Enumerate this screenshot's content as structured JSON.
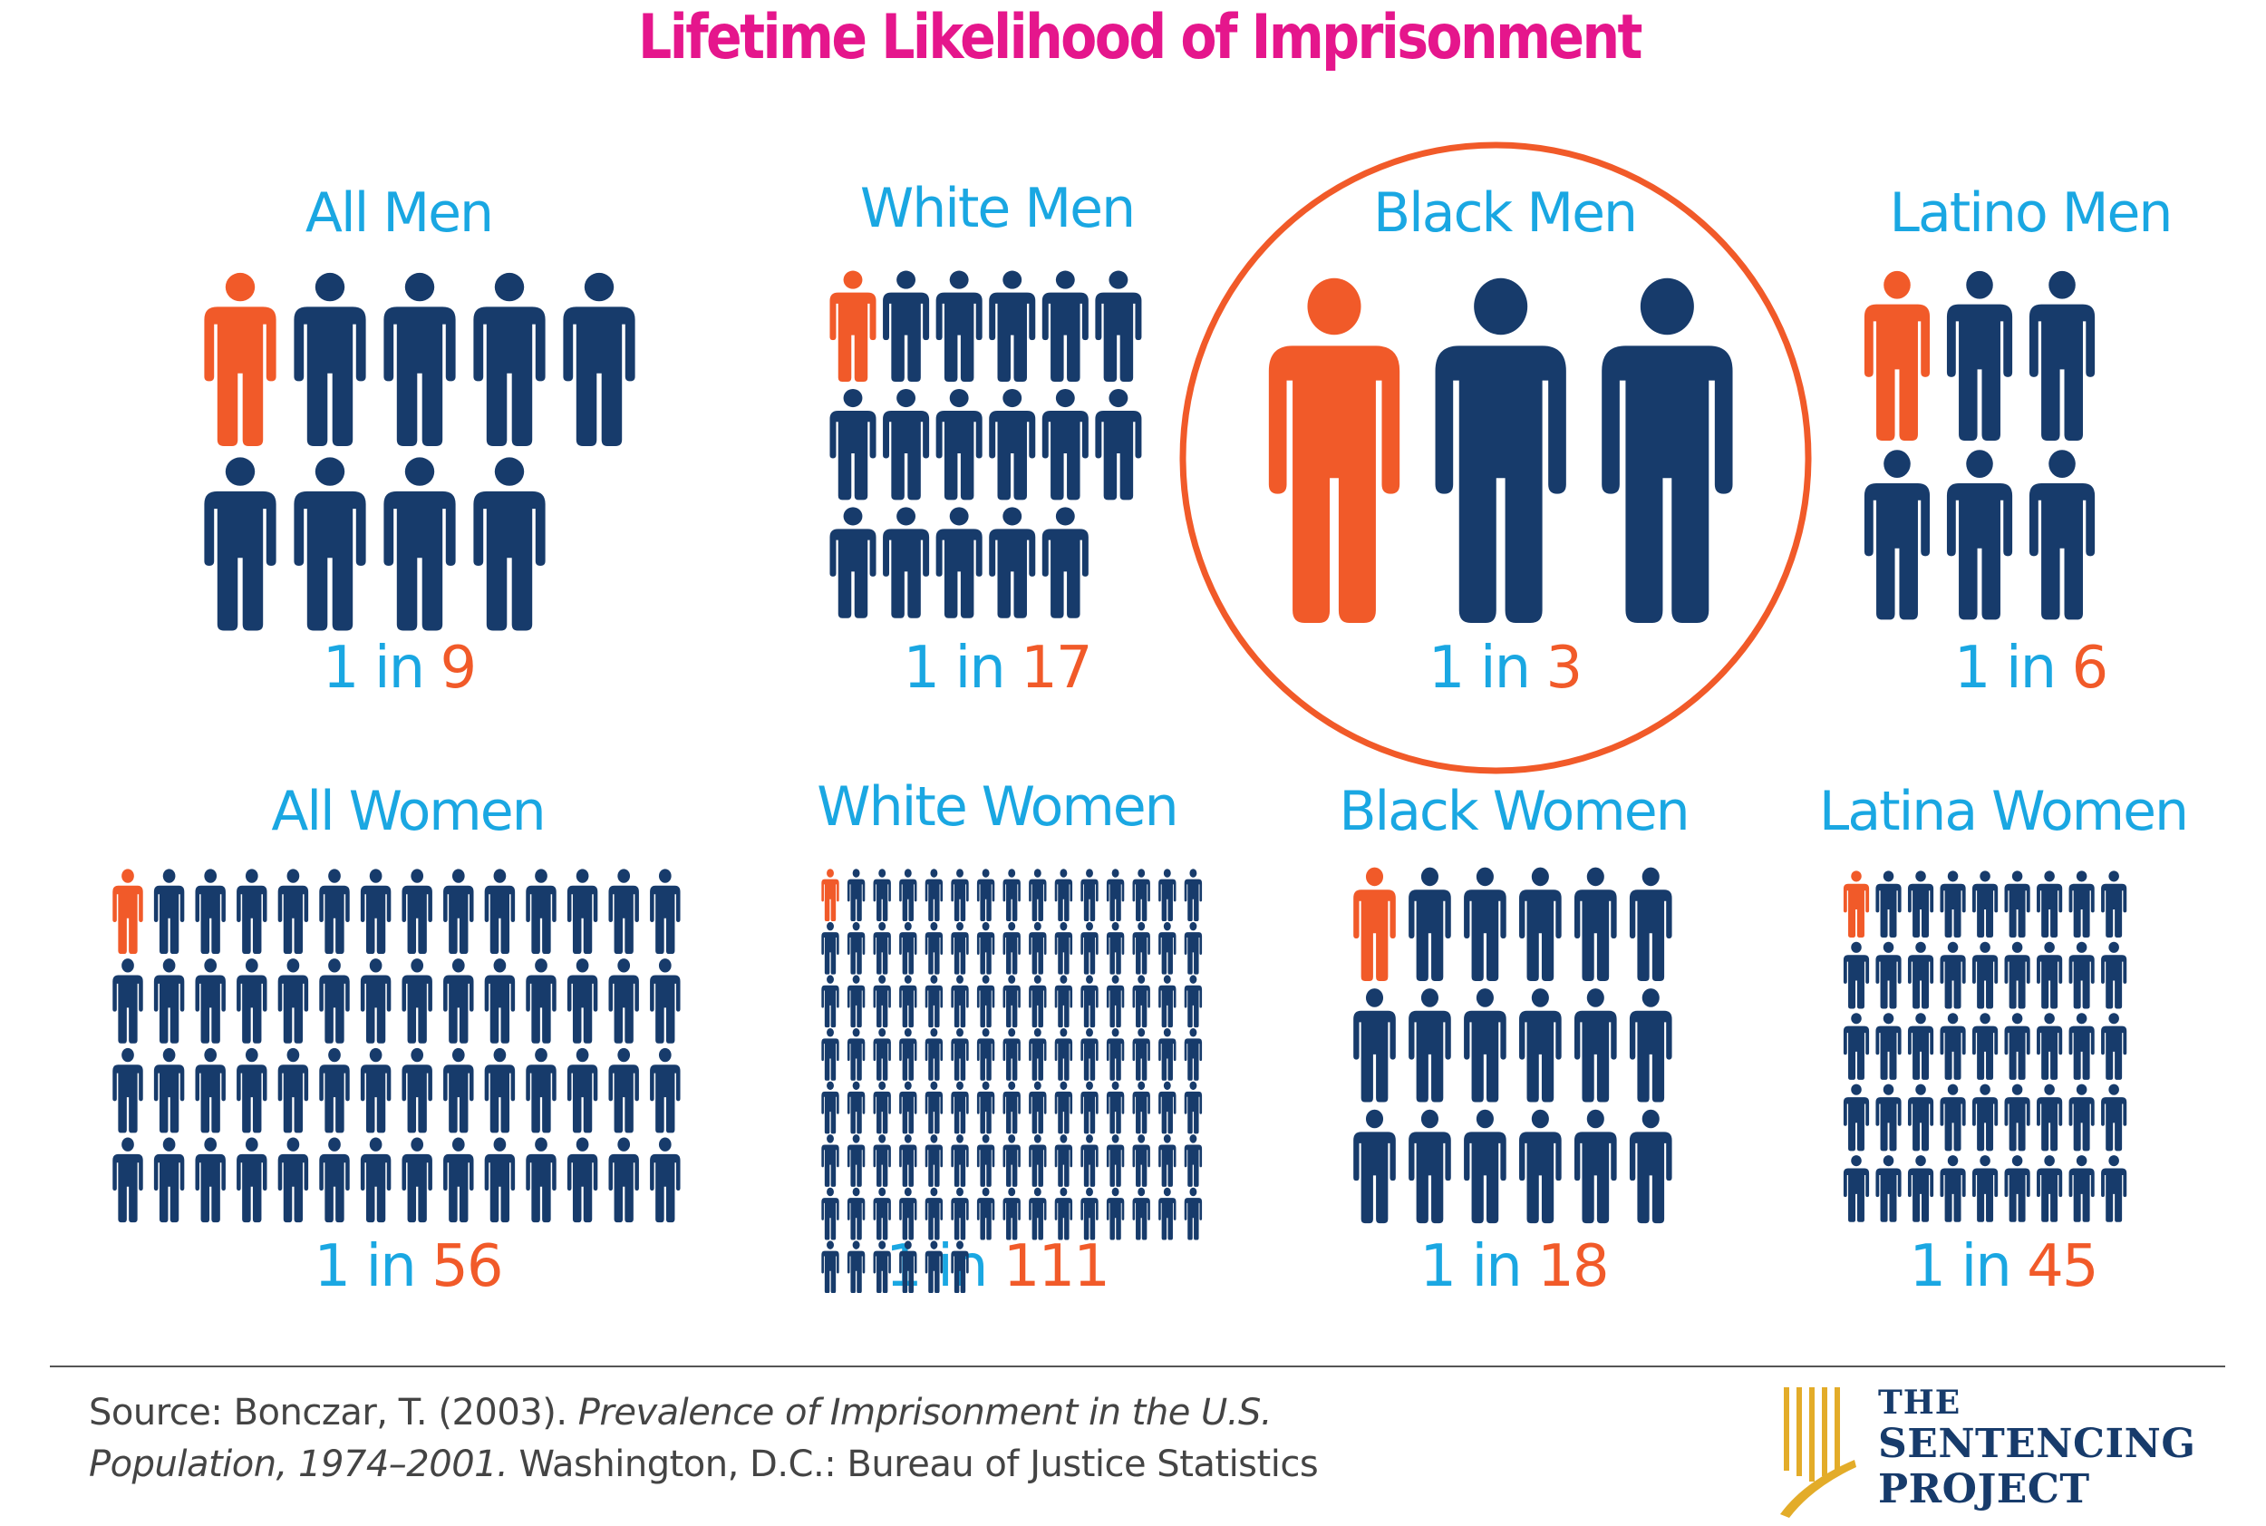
{
  "chart_data": {
    "type": "pictograph",
    "title": "Lifetime Likelihood of Imprisonment",
    "groups": [
      {
        "label": "All Men",
        "ratio_prefix": "1 in",
        "denominator": 9
      },
      {
        "label": "White Men",
        "ratio_prefix": "1 in",
        "denominator": 17
      },
      {
        "label": "Black Men",
        "ratio_prefix": "1 in",
        "denominator": 3,
        "highlighted": true
      },
      {
        "label": "Latino Men",
        "ratio_prefix": "1 in",
        "denominator": 6
      },
      {
        "label": "All Women",
        "ratio_prefix": "1 in",
        "denominator": 56
      },
      {
        "label": "White Women",
        "ratio_prefix": "1 in",
        "denominator": 111
      },
      {
        "label": "Black Women",
        "ratio_prefix": "1 in",
        "denominator": 18
      },
      {
        "label": "Latina Women",
        "ratio_prefix": "1 in",
        "denominator": 45
      }
    ]
  },
  "source": {
    "prefix": "Source: Bonczar, T. (2003). ",
    "title_line1": "Prevalence of Imprisonment in the U.S.",
    "title_line2": "Population, 1974–2001.",
    "suffix": " Washington, D.C.: Bureau of Justice Statistics"
  },
  "logo": {
    "line1": "THE",
    "line2": "SENTENCING",
    "line3": "PROJECT"
  },
  "colors": {
    "title": "#e5168c",
    "label": "#1aa7e2",
    "highlight": "#f15a29",
    "figure": "#173b6b",
    "divider": "#555555",
    "logo_mark": "#e3ac29"
  }
}
